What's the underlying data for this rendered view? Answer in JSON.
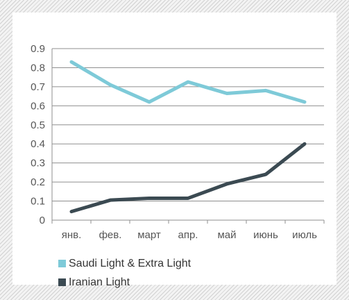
{
  "chart_data": {
    "type": "line",
    "categories": [
      "янв.",
      "фев.",
      "март",
      "апр.",
      "май",
      "июнь",
      "июль"
    ],
    "series": [
      {
        "name": "Saudi Light & Extra Light",
        "color": "#7ecad8",
        "values": [
          0.83,
          0.71,
          0.62,
          0.725,
          0.665,
          0.68,
          0.62
        ]
      },
      {
        "name": "Iranian Light",
        "color": "#3b4a52",
        "values": [
          0.045,
          0.105,
          0.115,
          0.115,
          0.19,
          0.24,
          0.4
        ]
      }
    ],
    "ylim": [
      0,
      0.9
    ],
    "yticks": [
      "0",
      "0.1",
      "0.2",
      "0.3",
      "0.4",
      "0.5",
      "0.6",
      "0.7",
      "0.8",
      "0.9"
    ],
    "grid": true,
    "legend": "bottom-left"
  }
}
